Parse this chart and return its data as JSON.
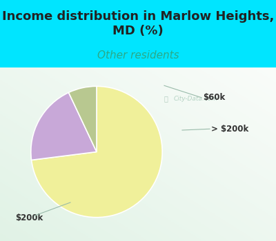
{
  "title": "Income distribution in Marlow Heights,\nMD (%)",
  "subtitle": "Other residents",
  "title_color": "#222222",
  "subtitle_color": "#2aaa88",
  "background_color": "#00e5ff",
  "chart_bg_colors": [
    "#d8f0e8",
    "#c0e8e0",
    "#e8f5ee"
  ],
  "slices": [
    {
      "label": "$200k",
      "value": 73,
      "color": "#f0f09a"
    },
    {
      "label": "$60k",
      "value": 20,
      "color": "#c8a8d8"
    },
    {
      "label": "> $200k",
      "value": 7,
      "color": "#b8c890"
    }
  ],
  "startangle": 90,
  "watermark": "City-Data.com",
  "annotation_color": "#333333",
  "line_color": "#99bbaa",
  "figsize": [
    4.0,
    3.5
  ],
  "dpi": 100,
  "title_fontsize": 13,
  "subtitle_fontsize": 11,
  "annotation_fontsize": 8.5
}
